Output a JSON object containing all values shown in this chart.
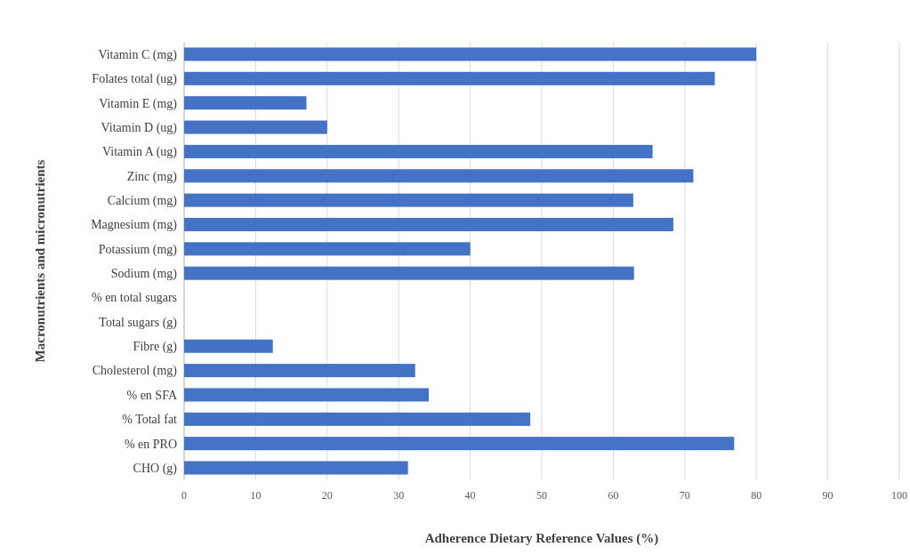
{
  "chart_data": {
    "type": "bar",
    "orientation": "horizontal",
    "xlabel": "Adherence Dietary Reference Values (%)",
    "ylabel": "Macronutrients and micronutrients",
    "categories": [
      "Vitamin C (mg)",
      "Folates total (ug)",
      "Vitamin E (mg)",
      "Vitamin D (ug)",
      "Vitamin A (ug)",
      "Zinc (mg)",
      "Calcium (mg)",
      "Magnesium (mg)",
      "Potassium (mg)",
      "Sodium (mg)",
      "% en total sugars",
      "Total sugars (g)",
      "Fibre (g)",
      "Cholesterol (mg)",
      "% en SFA",
      "% Total fat",
      "% en PRO",
      "CHO (g)"
    ],
    "values": [
      80,
      74.2,
      17.1,
      20,
      65.5,
      71.2,
      62.8,
      68.4,
      40,
      62.9,
      null,
      null,
      12.4,
      32.3,
      34.2,
      48.4,
      76.9,
      31.3
    ],
    "color": "#4472c4",
    "xlim": [
      0,
      100
    ],
    "xticks": [
      0,
      10,
      20,
      30,
      40,
      50,
      60,
      70,
      80,
      90,
      100
    ],
    "grid": "x"
  }
}
